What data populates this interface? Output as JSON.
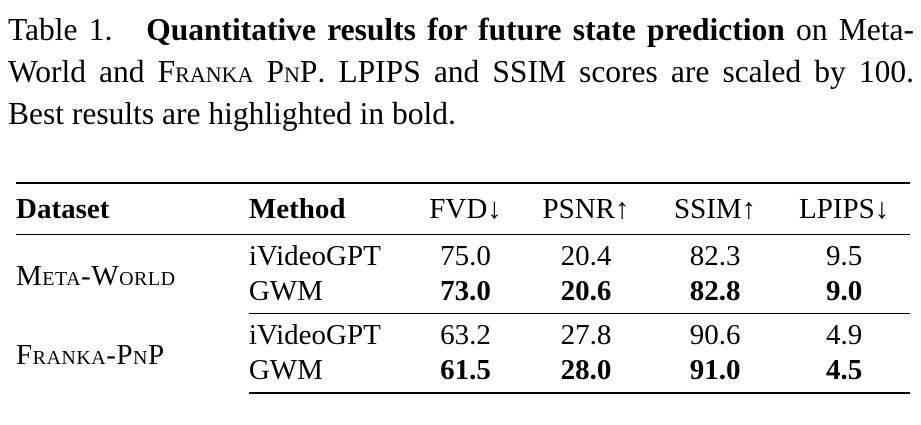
{
  "caption": {
    "label": "Table 1.",
    "title": "Quantitative results for future state prediction",
    "text_1": " on Meta-World and ",
    "franka": "Franka PnP",
    "text_2": ". LPIPS and SSIM scores are scaled by 100. Best results are highlighted in bold."
  },
  "table": {
    "headers": {
      "dataset": "Dataset",
      "method": "Method",
      "fvd": "FVD↓",
      "psnr": "PSNR↑",
      "ssim": "SSIM↑",
      "lpips": "LPIPS↓"
    },
    "groups": [
      {
        "dataset": "Meta-World",
        "rows": [
          {
            "method": "iVideoGPT",
            "fvd": "75.0",
            "psnr": "20.4",
            "ssim": "82.3",
            "lpips": "9.5"
          },
          {
            "method": "GWM",
            "fvd": "73.0",
            "psnr": "20.6",
            "ssim": "82.8",
            "lpips": "9.0"
          }
        ]
      },
      {
        "dataset": "Franka-PnP",
        "rows": [
          {
            "method": "iVideoGPT",
            "fvd": "63.2",
            "psnr": "27.8",
            "ssim": "90.6",
            "lpips": "4.9"
          },
          {
            "method": "GWM",
            "fvd": "61.5",
            "psnr": "28.0",
            "ssim": "91.0",
            "lpips": "4.5"
          }
        ]
      }
    ]
  }
}
